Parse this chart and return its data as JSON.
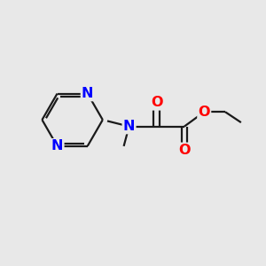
{
  "bg_color": "#e8e8e8",
  "bond_color": "#1a1a1a",
  "N_color": "#0000ff",
  "O_color": "#ff0000",
  "line_width": 1.6,
  "font_size_atoms": 11.5,
  "fig_width": 3.0,
  "fig_height": 3.0,
  "dpi": 100,
  "xlim": [
    0,
    10
  ],
  "ylim": [
    0,
    10
  ]
}
